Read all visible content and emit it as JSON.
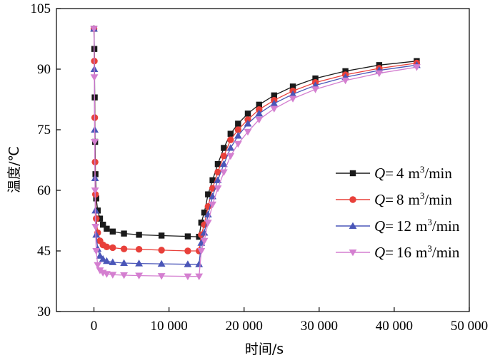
{
  "chart_data": {
    "type": "line",
    "title": "",
    "xlabel": "时间/s",
    "ylabel": "温度/℃",
    "xlim": [
      -5000,
      50000
    ],
    "ylim": [
      30,
      105
    ],
    "xticks": [
      0,
      10000,
      20000,
      30000,
      40000,
      50000
    ],
    "xtick_labels": [
      "0",
      "10 000",
      "20 000",
      "30 000",
      "40 000",
      "50 000"
    ],
    "yticks": [
      30,
      45,
      60,
      75,
      90,
      105
    ],
    "ytick_labels": [
      "30",
      "45",
      "60",
      "75",
      "90",
      "105"
    ],
    "legend_position": "right",
    "series": [
      {
        "name": "Q=4 m³/min",
        "legend": {
          "var": "Q",
          "eq": "=",
          "value": "4",
          "unit_base": "m",
          "unit_sup": "3",
          "unit_tail": "/min"
        },
        "color": "#1a1a1a",
        "marker": "square",
        "x": [
          0,
          50,
          100,
          150,
          200,
          300,
          500,
          800,
          1200,
          1700,
          2500,
          4000,
          6000,
          9000,
          12500,
          14000,
          14300,
          14700,
          15200,
          15800,
          16500,
          17300,
          18200,
          19200,
          20500,
          22000,
          24000,
          26500,
          29500,
          33500,
          38000,
          43000
        ],
        "y": [
          100,
          95,
          83,
          72,
          64,
          58,
          55,
          53,
          51.5,
          50.5,
          49.8,
          49.3,
          49,
          48.8,
          48.6,
          48.5,
          52,
          54.5,
          59,
          62.5,
          66.5,
          70.5,
          74,
          76.5,
          79,
          81.2,
          83.5,
          85.7,
          87.7,
          89.5,
          91,
          92
        ]
      },
      {
        "name": "Q=8 m³/min",
        "legend": {
          "var": "Q",
          "eq": "=",
          "value": "8",
          "unit_base": "m",
          "unit_sup": "3",
          "unit_tail": "/min"
        },
        "color": "#e8403a",
        "marker": "circle",
        "x": [
          0,
          50,
          100,
          150,
          200,
          300,
          500,
          800,
          1200,
          1700,
          2500,
          4000,
          6000,
          9000,
          12500,
          14000,
          14300,
          14700,
          15200,
          15800,
          16500,
          17300,
          18200,
          19200,
          20500,
          22000,
          24000,
          26500,
          29500,
          33500,
          38000,
          43000
        ],
        "y": [
          100,
          92,
          78,
          67,
          59,
          53,
          49.5,
          47.5,
          46.5,
          46,
          45.8,
          45.5,
          45.4,
          45.2,
          45,
          45,
          49,
          51.5,
          56,
          60.5,
          64.5,
          68.5,
          72.5,
          75,
          77.5,
          80,
          82.3,
          84.6,
          86.7,
          88.6,
          90.2,
          91.5
        ]
      },
      {
        "name": "Q=12 m³/min",
        "legend": {
          "var": "Q",
          "eq": "=",
          "value": "12",
          "unit_base": "m",
          "unit_sup": "3",
          "unit_tail": "/min"
        },
        "color": "#4a56b8",
        "marker": "triangle-up",
        "x": [
          0,
          50,
          100,
          150,
          200,
          300,
          500,
          800,
          1200,
          1700,
          2500,
          4000,
          6000,
          9000,
          12500,
          14000,
          14300,
          14700,
          15200,
          15800,
          16500,
          17300,
          18200,
          19200,
          20500,
          22000,
          24000,
          26500,
          29500,
          33500,
          38000,
          43000
        ],
        "y": [
          100,
          90,
          75,
          63,
          55,
          49,
          45.5,
          43.8,
          43,
          42.5,
          42.2,
          42,
          41.9,
          41.8,
          41.7,
          41.7,
          47,
          49.5,
          54,
          58.5,
          62.5,
          66.5,
          70.5,
          73.5,
          76.5,
          79,
          81.5,
          83.8,
          86,
          88,
          89.7,
          91
        ]
      },
      {
        "name": "Q=16 m³/min",
        "legend": {
          "var": "Q",
          "eq": "=",
          "value": "16",
          "unit_base": "m",
          "unit_sup": "3",
          "unit_tail": "/min"
        },
        "color": "#d47fd0",
        "marker": "triangle-down",
        "x": [
          0,
          50,
          100,
          150,
          200,
          300,
          500,
          800,
          1200,
          1700,
          2500,
          4000,
          6000,
          9000,
          12500,
          14000,
          14300,
          14700,
          15200,
          15800,
          16500,
          17300,
          18200,
          19200,
          20500,
          22000,
          24000,
          26500,
          29500,
          33500,
          38000,
          43000
        ],
        "y": [
          100,
          88,
          72,
          60,
          51,
          45,
          41.5,
          40.2,
          39.6,
          39.3,
          39.1,
          39,
          38.9,
          38.8,
          38.7,
          38.7,
          45,
          47.5,
          52,
          56.5,
          60.5,
          64.5,
          68.5,
          71.5,
          74.5,
          77.5,
          80.2,
          82.7,
          85,
          87.2,
          89,
          90.5
        ]
      }
    ]
  }
}
